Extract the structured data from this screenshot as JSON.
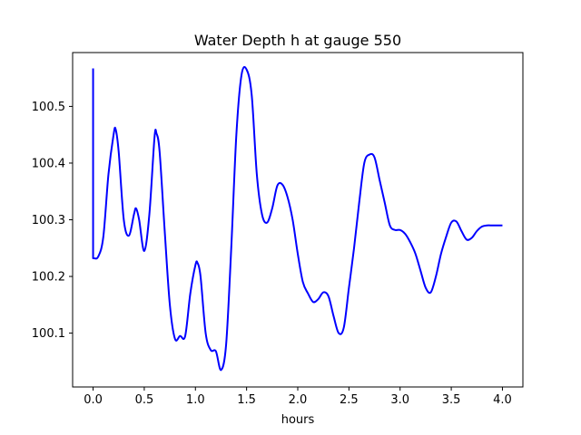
{
  "chart_data": {
    "type": "line",
    "title": "Water Depth h at gauge 550",
    "xlabel": "hours",
    "ylabel": "",
    "xlim": [
      -0.2,
      4.2
    ],
    "ylim": [
      100.005,
      100.595
    ],
    "xticks": [
      0.0,
      0.5,
      1.0,
      1.5,
      2.0,
      2.5,
      3.0,
      3.5,
      4.0
    ],
    "xtick_labels": [
      "0.0",
      "0.5",
      "1.0",
      "1.5",
      "2.0",
      "2.5",
      "3.0",
      "3.5",
      "4.0"
    ],
    "yticks": [
      100.1,
      100.2,
      100.3,
      100.4,
      100.5
    ],
    "ytick_labels": [
      "100.1",
      "100.2",
      "100.3",
      "100.4",
      "100.5"
    ],
    "grid": false,
    "series": [
      {
        "color": "#0000ff",
        "x": [
          0.0,
          0.0,
          0.0,
          0.05,
          0.1,
          0.15,
          0.2,
          0.22,
          0.25,
          0.3,
          0.35,
          0.4,
          0.42,
          0.45,
          0.5,
          0.55,
          0.6,
          0.62,
          0.65,
          0.7,
          0.75,
          0.8,
          0.85,
          0.9,
          0.95,
          1.0,
          1.02,
          1.05,
          1.1,
          1.15,
          1.2,
          1.25,
          1.3,
          1.35,
          1.4,
          1.45,
          1.5,
          1.55,
          1.6,
          1.65,
          1.7,
          1.75,
          1.8,
          1.85,
          1.9,
          1.95,
          2.0,
          2.05,
          2.1,
          2.15,
          2.2,
          2.25,
          2.3,
          2.35,
          2.4,
          2.45,
          2.5,
          2.55,
          2.6,
          2.65,
          2.7,
          2.75,
          2.8,
          2.85,
          2.9,
          2.95,
          3.0,
          3.05,
          3.1,
          3.15,
          3.2,
          3.25,
          3.3,
          3.35,
          3.4,
          3.45,
          3.5,
          3.55,
          3.6,
          3.65,
          3.7,
          3.75,
          3.8,
          3.85,
          3.9,
          3.95,
          4.0
        ],
        "y": [
          100.567,
          100.567,
          100.232,
          100.235,
          100.27,
          100.38,
          100.45,
          100.46,
          100.42,
          100.3,
          100.272,
          100.31,
          100.32,
          100.3,
          100.245,
          100.31,
          100.445,
          100.452,
          100.42,
          100.28,
          100.15,
          100.09,
          100.095,
          100.095,
          100.17,
          100.22,
          100.224,
          100.2,
          100.1,
          100.07,
          100.068,
          100.035,
          100.08,
          100.25,
          100.45,
          100.555,
          100.565,
          100.52,
          100.38,
          100.31,
          100.295,
          100.32,
          100.36,
          100.362,
          100.34,
          100.3,
          100.24,
          100.19,
          100.17,
          100.155,
          100.16,
          100.172,
          100.165,
          100.13,
          100.1,
          100.11,
          100.18,
          100.25,
          100.33,
          100.4,
          100.415,
          100.41,
          100.37,
          100.33,
          100.29,
          100.282,
          100.282,
          100.275,
          100.26,
          100.24,
          100.21,
          100.18,
          100.172,
          100.2,
          100.24,
          100.27,
          100.295,
          100.297,
          100.28,
          100.265,
          100.268,
          100.28,
          100.288,
          100.29,
          100.29,
          100.29,
          100.29
        ]
      }
    ]
  }
}
